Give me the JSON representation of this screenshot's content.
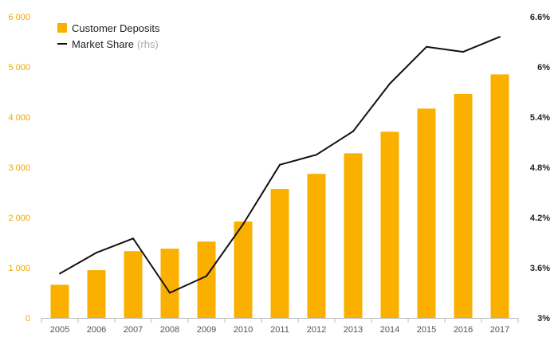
{
  "chart_data": {
    "type": "bar+line",
    "categories": [
      "2005",
      "2006",
      "2007",
      "2008",
      "2009",
      "2010",
      "2011",
      "2012",
      "2013",
      "2014",
      "2015",
      "2016",
      "2017"
    ],
    "series": [
      {
        "name": "Customer Deposits",
        "type": "bar",
        "axis": "left",
        "values": [
          660,
          950,
          1330,
          1380,
          1520,
          1920,
          2570,
          2870,
          3280,
          3710,
          4170,
          4460,
          4850
        ]
      },
      {
        "name": "Market Share",
        "name_suffix": "(rhs)",
        "type": "line",
        "axis": "right",
        "values": [
          3.53,
          3.78,
          3.95,
          3.3,
          3.5,
          4.12,
          4.83,
          4.95,
          5.23,
          5.8,
          6.24,
          6.18,
          6.36
        ]
      }
    ],
    "left_axis": {
      "ylim": [
        0,
        6000
      ],
      "ticks": [
        0,
        1000,
        2000,
        3000,
        4000,
        5000,
        6000
      ],
      "tick_labels": [
        "0",
        "1 000",
        "2 000",
        "3 000",
        "4 000",
        "5 000",
        "6 000"
      ]
    },
    "right_axis": {
      "ylim": [
        3.0,
        6.6
      ],
      "ticks": [
        3.0,
        3.6,
        4.2,
        4.8,
        5.4,
        6.0,
        6.6
      ],
      "tick_labels": [
        "3%",
        "3.6%",
        "4.2%",
        "4.8%",
        "5.4%",
        "6%",
        "6.6%"
      ]
    },
    "legend_placement": "top-left",
    "grid": false,
    "colors": {
      "bar": "#FBB000",
      "line": "#111111",
      "left_ticks": "#F0A500",
      "right_ticks": "#222222",
      "axis": "#bbbbbb"
    }
  }
}
